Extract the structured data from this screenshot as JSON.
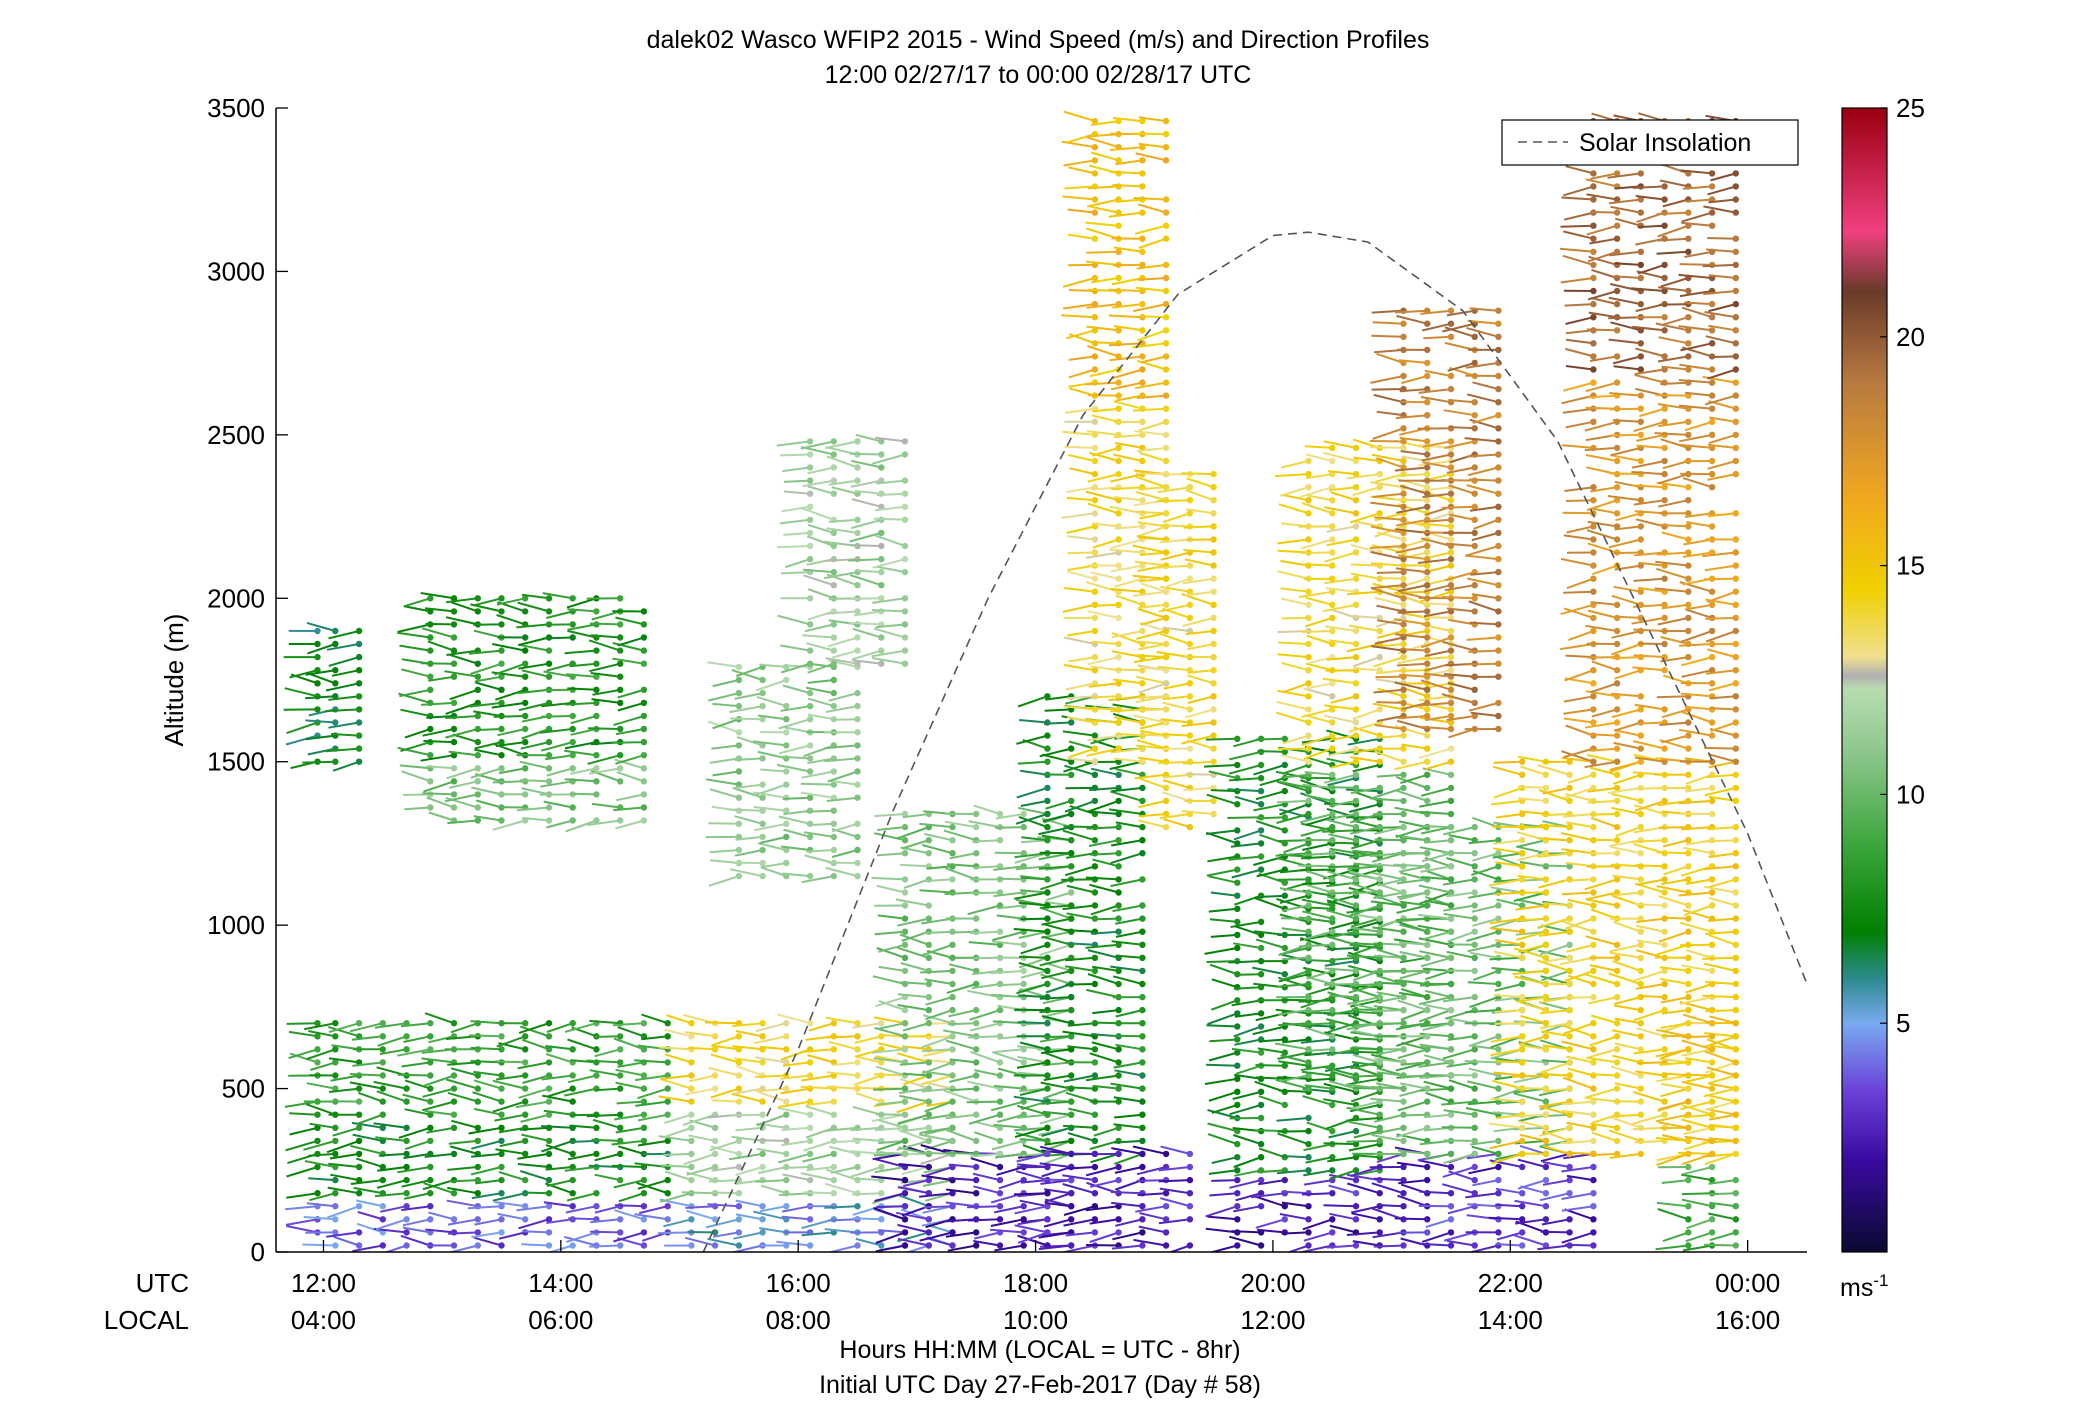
{
  "chart_data": {
    "type": "scatter",
    "subtype": "wind-barb-profile",
    "title": "dalek02 Wasco WFIP2 2015 - Wind Speed (m/s) and Direction Profiles",
    "subtitle": "12:00 02/27/17 to 00:00 02/28/17  UTC",
    "ylabel": "Altitude (m)",
    "xlabel": "Hours HH:MM  (LOCAL = UTC - 8hr)",
    "xlabel2": "Initial UTC Day 27-Feb-2017 (Day # 58)",
    "xlim": [
      11.6,
      24.5
    ],
    "ylim": [
      0,
      3500
    ],
    "y_ticks": [
      0,
      500,
      1000,
      1500,
      2000,
      2500,
      3000,
      3500
    ],
    "x_ticks": [
      12,
      14,
      16,
      18,
      20,
      22,
      24
    ],
    "x_row_titles": [
      "UTC",
      "LOCAL"
    ],
    "x_tick_labels_utc": [
      "12:00",
      "14:00",
      "16:00",
      "18:00",
      "20:00",
      "22:00",
      "00:00"
    ],
    "x_tick_labels_local": [
      "04:00",
      "06:00",
      "08:00",
      "10:00",
      "12:00",
      "14:00",
      "16:00"
    ],
    "legend": {
      "label": "Solar Insolation",
      "placement": "top-right",
      "style": "dashed",
      "color": "#555555"
    },
    "colorbar": {
      "ticks": [
        5,
        10,
        15,
        20,
        25
      ],
      "tick_labels": [
        "5",
        "10",
        "15",
        "20",
        "25"
      ],
      "unit_label": "ms",
      "unit_exponent": "-1",
      "range": [
        0,
        25
      ],
      "stops": [
        {
          "v": 0,
          "c": "#0a0a30"
        },
        {
          "v": 2,
          "c": "#3a0aa0"
        },
        {
          "v": 3.5,
          "c": "#6a40d8"
        },
        {
          "v": 5,
          "c": "#7aaaf0"
        },
        {
          "v": 6,
          "c": "#2a8a8a"
        },
        {
          "v": 7,
          "c": "#008000"
        },
        {
          "v": 9,
          "c": "#40a840"
        },
        {
          "v": 11,
          "c": "#90c890"
        },
        {
          "v": 12.3,
          "c": "#b8dcb0"
        },
        {
          "v": 12.6,
          "c": "#b0b0b0"
        },
        {
          "v": 13,
          "c": "#f0e090"
        },
        {
          "v": 14.5,
          "c": "#f0d000"
        },
        {
          "v": 16.5,
          "c": "#f0a820"
        },
        {
          "v": 19,
          "c": "#b87a40"
        },
        {
          "v": 21,
          "c": "#6a3a2a"
        },
        {
          "v": 22.3,
          "c": "#f04080"
        },
        {
          "v": 25,
          "c": "#9a0010"
        }
      ]
    },
    "solar_insolation": {
      "x": [
        15.2,
        16.0,
        16.8,
        17.6,
        18.4,
        19.2,
        20.0,
        20.3,
        20.8,
        21.6,
        22.4,
        23.2,
        24.0,
        24.5
      ],
      "y": [
        0,
        620,
        1350,
        2000,
        2560,
        2930,
        3110,
        3120,
        3090,
        2880,
        2480,
        1880,
        1280,
        820
      ]
    },
    "profile_times": [
      11.95,
      12.1,
      12.3,
      12.5,
      12.7,
      12.9,
      13.1,
      13.3,
      13.5,
      13.7,
      13.9,
      14.1,
      14.3,
      14.5,
      14.7,
      14.9,
      15.1,
      15.3,
      15.5,
      15.7,
      15.9,
      16.1,
      16.3,
      16.5,
      16.7,
      16.9,
      17.1,
      17.3,
      17.5,
      17.7,
      17.9,
      18.1,
      18.3,
      18.5,
      18.7,
      18.9,
      19.1,
      19.3,
      19.5,
      19.7,
      19.9,
      20.1,
      20.3,
      20.5,
      20.7,
      20.9,
      21.1,
      21.3,
      21.5,
      21.7,
      21.9,
      22.1,
      22.3,
      22.5,
      22.7,
      22.9,
      23.1,
      23.3,
      23.5,
      23.7,
      23.9
    ],
    "segments": [
      {
        "t0": 11.9,
        "t1": 15.0,
        "h0": 20,
        "h1": 720,
        "speeds": [
          [
            0,
            150,
            4
          ],
          [
            150,
            400,
            7.5
          ],
          [
            400,
            720,
            8.5
          ]
        ]
      },
      {
        "t0": 11.9,
        "t1": 12.3,
        "h0": 1500,
        "h1": 1900,
        "speeds": [
          [
            1500,
            1900,
            7
          ]
        ]
      },
      {
        "t0": 12.9,
        "t1": 14.8,
        "h0": 1320,
        "h1": 2010,
        "speeds": [
          [
            1320,
            1500,
            10.5
          ],
          [
            1500,
            2010,
            8
          ]
        ]
      },
      {
        "t0": 15.1,
        "t1": 17.3,
        "h0": 20,
        "h1": 720,
        "speeds": [
          [
            0,
            150,
            5
          ],
          [
            150,
            450,
            11.5
          ],
          [
            450,
            720,
            14
          ]
        ]
      },
      {
        "t0": 15.5,
        "t1": 16.6,
        "h0": 1150,
        "h1": 1800,
        "speeds": [
          [
            1150,
            1800,
            11
          ]
        ]
      },
      {
        "t0": 16.1,
        "t1": 17.0,
        "h0": 1800,
        "h1": 2480,
        "speeds": [
          [
            1800,
            2480,
            11.5
          ]
        ]
      },
      {
        "t0": 16.9,
        "t1": 18.3,
        "h0": 20,
        "h1": 300,
        "speeds": [
          [
            0,
            300,
            2.5
          ]
        ]
      },
      {
        "t0": 16.9,
        "t1": 18.3,
        "h0": 300,
        "h1": 1350,
        "speeds": [
          [
            300,
            1350,
            10.5
          ]
        ]
      },
      {
        "t0": 18.1,
        "t1": 18.9,
        "h0": 300,
        "h1": 1700,
        "speeds": [
          [
            300,
            1700,
            7.5
          ]
        ]
      },
      {
        "t0": 18.1,
        "t1": 19.4,
        "h0": 20,
        "h1": 300,
        "speeds": [
          [
            0,
            300,
            2.5
          ]
        ]
      },
      {
        "t0": 18.5,
        "t1": 19.2,
        "h0": 1500,
        "h1": 3480,
        "speeds": [
          [
            1500,
            2600,
            14
          ],
          [
            2600,
            3480,
            15.5
          ]
        ]
      },
      {
        "t0": 19.1,
        "t1": 19.6,
        "h0": 1300,
        "h1": 2400,
        "speeds": [
          [
            1300,
            2400,
            14
          ]
        ]
      },
      {
        "t0": 19.6,
        "t1": 20.8,
        "h0": 20,
        "h1": 250,
        "speeds": [
          [
            0,
            250,
            2.5
          ]
        ]
      },
      {
        "t0": 19.6,
        "t1": 20.9,
        "h0": 250,
        "h1": 1600,
        "speeds": [
          [
            250,
            1600,
            7.5
          ]
        ]
      },
      {
        "t0": 20.2,
        "t1": 21.5,
        "h0": 500,
        "h1": 2480,
        "speeds": [
          [
            500,
            1500,
            9.5
          ],
          [
            1500,
            2480,
            14
          ]
        ]
      },
      {
        "t0": 20.9,
        "t1": 22.8,
        "h0": 20,
        "h1": 300,
        "speeds": [
          [
            0,
            300,
            3
          ]
        ]
      },
      {
        "t0": 20.9,
        "t1": 22.6,
        "h0": 300,
        "h1": 1300,
        "speeds": [
          [
            300,
            1300,
            10
          ]
        ]
      },
      {
        "t0": 21.1,
        "t1": 22.0,
        "h0": 1600,
        "h1": 2900,
        "speeds": [
          [
            1600,
            2900,
            18.5
          ]
        ]
      },
      {
        "t0": 22.0,
        "t1": 23.9,
        "h0": 300,
        "h1": 1500,
        "speeds": [
          [
            300,
            1500,
            14.5
          ]
        ]
      },
      {
        "t0": 22.6,
        "t1": 23.9,
        "h0": 1500,
        "h1": 3480,
        "speeds": [
          [
            1500,
            2700,
            17.5
          ],
          [
            2700,
            3480,
            19.5
          ]
        ]
      },
      {
        "t0": 23.4,
        "t1": 23.9,
        "h0": 20,
        "h1": 700,
        "speeds": [
          [
            0,
            300,
            9
          ],
          [
            300,
            700,
            15
          ]
        ]
      }
    ]
  }
}
